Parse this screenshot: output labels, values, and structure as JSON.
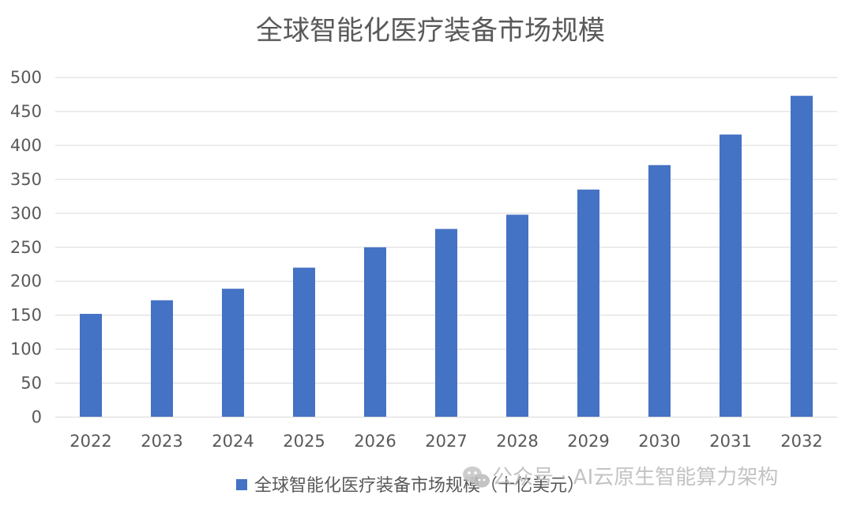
{
  "chart_data": {
    "type": "bar",
    "title": "全球智能化医疗装备市场规模",
    "categories": [
      "2022",
      "2023",
      "2024",
      "2025",
      "2026",
      "2027",
      "2028",
      "2029",
      "2030",
      "2031",
      "2032"
    ],
    "series": [
      {
        "name": "全球智能化医疗装备市场规模（十亿美元）",
        "values": [
          152,
          172,
          189,
          220,
          250,
          277,
          298,
          335,
          371,
          416,
          473
        ],
        "color": "#4472C4"
      }
    ],
    "ylim": [
      0,
      500
    ],
    "yticks": [
      "0",
      "50",
      "100",
      "150",
      "200",
      "250",
      "300",
      "350",
      "400",
      "450",
      "500"
    ],
    "grid": true,
    "legend_position": "bottom"
  },
  "watermark": {
    "text": "公众号 · AI云原生智能算力架构",
    "icon": "wechat-icon"
  }
}
